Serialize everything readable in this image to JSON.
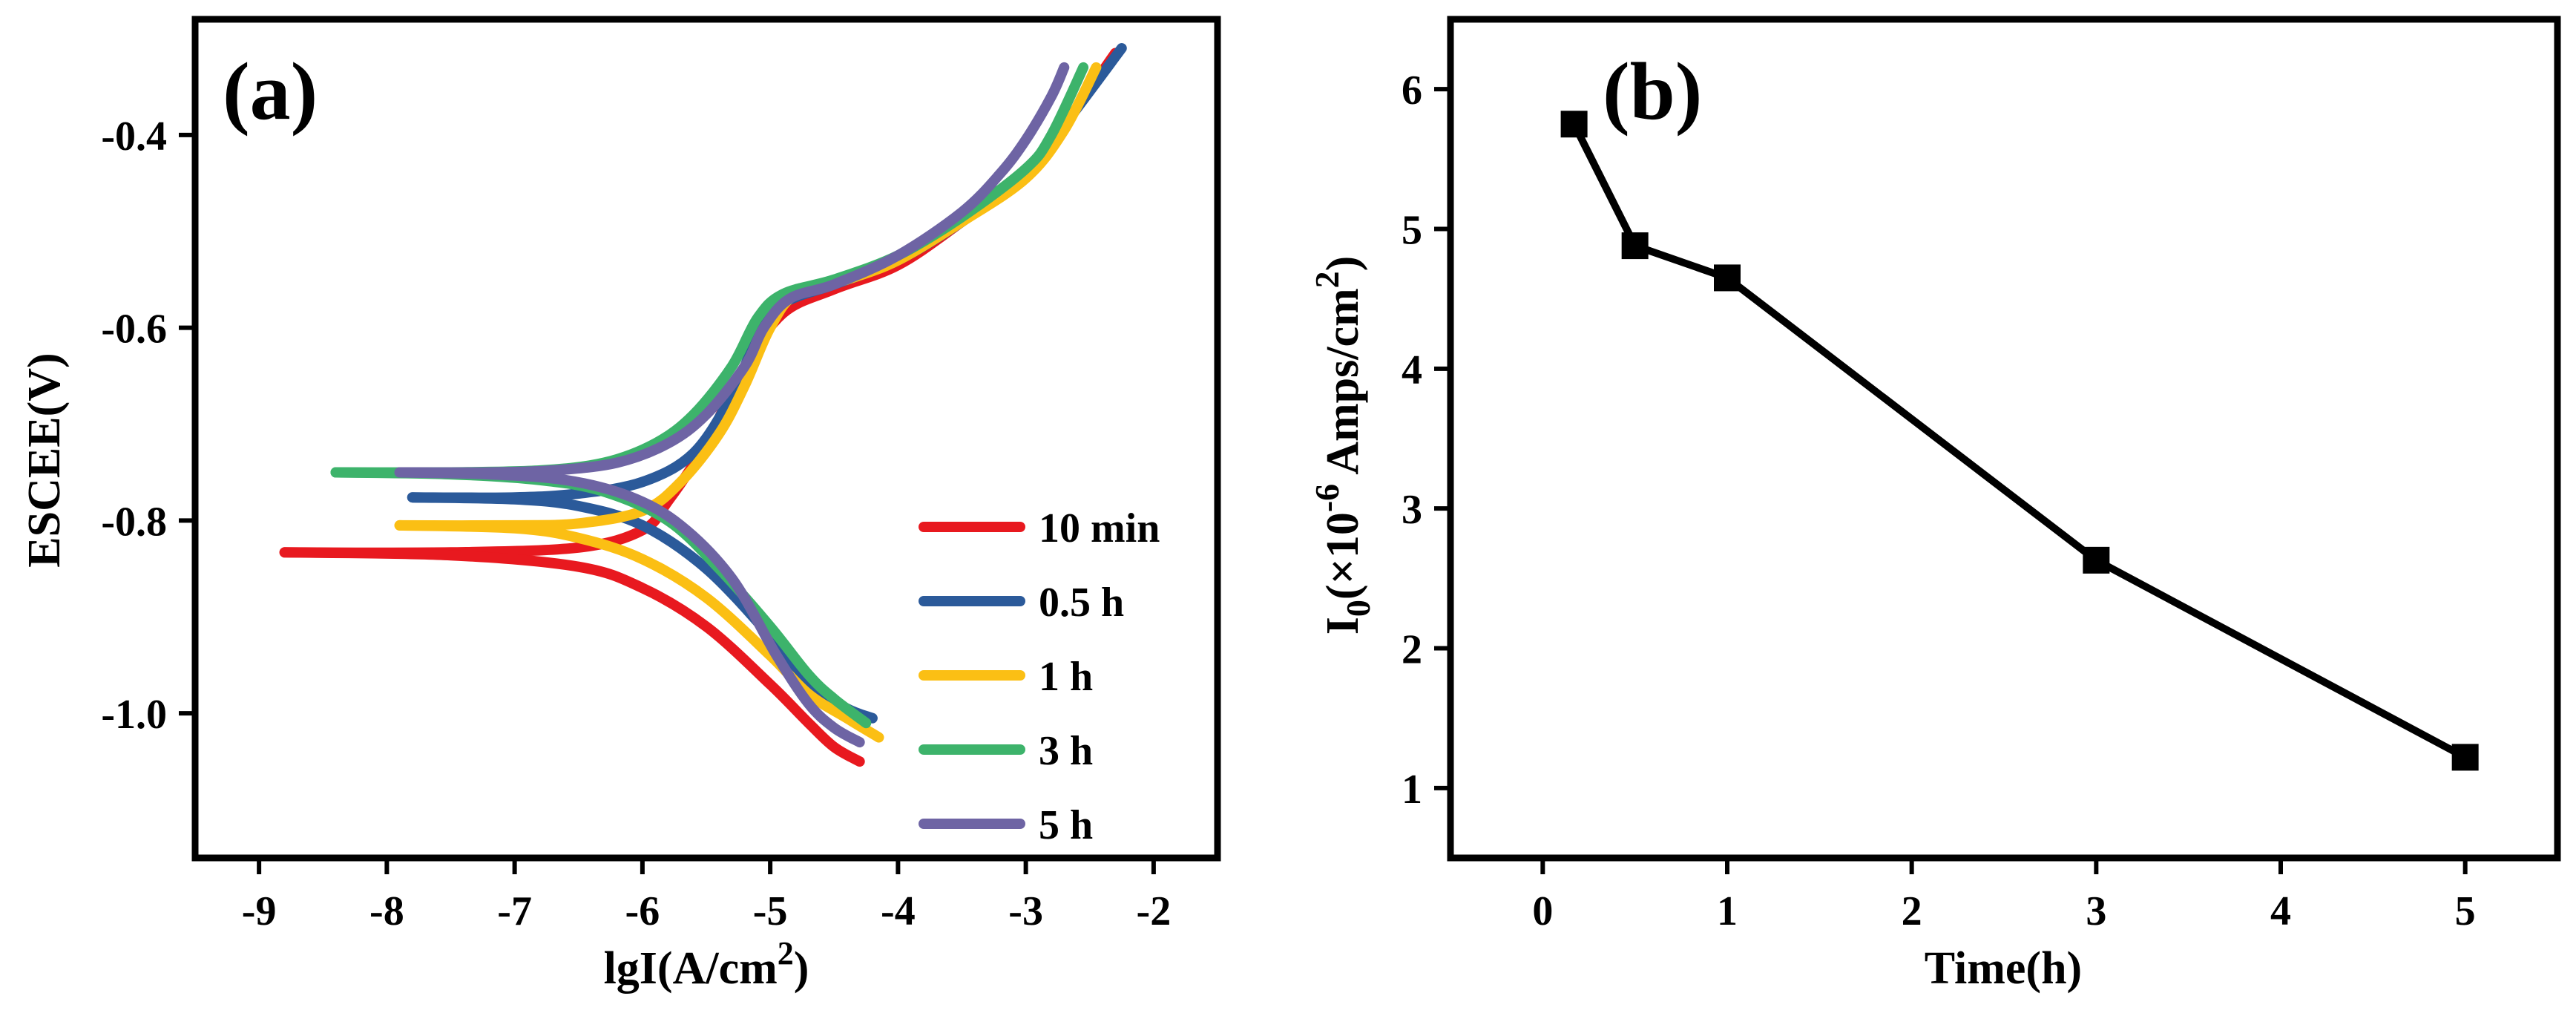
{
  "chart_data": [
    {
      "type": "line",
      "panel_label": "(a)",
      "xlabel_main": "lgI(A/cm",
      "xlabel_sup": "2",
      "xlabel_tail": ")",
      "ylabel": "ESCEE(V)",
      "xlim": [
        -9.5,
        -1.5
      ],
      "ylim": [
        -1.15,
        -0.28
      ],
      "xticks": [
        -9,
        -8,
        -7,
        -6,
        -5,
        -4,
        -3,
        -2
      ],
      "yticks": [
        -0.4,
        -0.6,
        -0.8,
        -1.0
      ],
      "ytick_labels": [
        "-0.4",
        "-0.6",
        "-0.8",
        "-1.0"
      ],
      "legend_position": "bottom-right",
      "series": [
        {
          "name": "10 min",
          "color": "#e8191f",
          "ecorr": -0.833,
          "anodic": [
            [
              -8.8,
              -0.833
            ],
            [
              -7.5,
              -0.833
            ],
            [
              -6.5,
              -0.828
            ],
            [
              -6.0,
              -0.81
            ],
            [
              -5.8,
              -0.78
            ],
            [
              -5.5,
              -0.72
            ],
            [
              -5.2,
              -0.64
            ],
            [
              -4.9,
              -0.585
            ],
            [
              -4.5,
              -0.56
            ],
            [
              -4.0,
              -0.535
            ],
            [
              -3.5,
              -0.49
            ],
            [
              -3.0,
              -0.44
            ],
            [
              -2.7,
              -0.39
            ],
            [
              -2.3,
              -0.315
            ]
          ],
          "cathodic": [
            [
              -8.8,
              -0.833
            ],
            [
              -7.5,
              -0.836
            ],
            [
              -6.5,
              -0.848
            ],
            [
              -6.0,
              -0.87
            ],
            [
              -5.5,
              -0.91
            ],
            [
              -5.0,
              -0.97
            ],
            [
              -4.7,
              -1.01
            ],
            [
              -4.5,
              -1.035
            ],
            [
              -4.3,
              -1.05
            ]
          ]
        },
        {
          "name": "0.5 h",
          "color": "#2b5a9a",
          "ecorr": -0.776,
          "anodic": [
            [
              -7.8,
              -0.776
            ],
            [
              -7.0,
              -0.776
            ],
            [
              -6.5,
              -0.772
            ],
            [
              -6.0,
              -0.76
            ],
            [
              -5.6,
              -0.73
            ],
            [
              -5.3,
              -0.67
            ],
            [
              -5.1,
              -0.61
            ],
            [
              -4.9,
              -0.575
            ],
            [
              -4.5,
              -0.555
            ],
            [
              -4.0,
              -0.53
            ],
            [
              -3.5,
              -0.49
            ],
            [
              -3.0,
              -0.44
            ],
            [
              -2.7,
              -0.39
            ],
            [
              -2.25,
              -0.31
            ]
          ],
          "cathodic": [
            [
              -7.8,
              -0.776
            ],
            [
              -7.0,
              -0.778
            ],
            [
              -6.5,
              -0.785
            ],
            [
              -6.0,
              -0.805
            ],
            [
              -5.5,
              -0.85
            ],
            [
              -5.0,
              -0.92
            ],
            [
              -4.7,
              -0.97
            ],
            [
              -4.4,
              -0.995
            ],
            [
              -4.2,
              -1.005
            ]
          ]
        },
        {
          "name": "1 h",
          "color": "#fbbf14",
          "ecorr": -0.805,
          "anodic": [
            [
              -7.9,
              -0.805
            ],
            [
              -7.0,
              -0.805
            ],
            [
              -6.5,
              -0.803
            ],
            [
              -6.0,
              -0.79
            ],
            [
              -5.7,
              -0.76
            ],
            [
              -5.4,
              -0.71
            ],
            [
              -5.2,
              -0.66
            ],
            [
              -5.0,
              -0.6
            ],
            [
              -4.8,
              -0.565
            ],
            [
              -4.4,
              -0.55
            ],
            [
              -4.0,
              -0.53
            ],
            [
              -3.5,
              -0.49
            ],
            [
              -3.0,
              -0.445
            ],
            [
              -2.7,
              -0.395
            ],
            [
              -2.45,
              -0.33
            ]
          ],
          "cathodic": [
            [
              -7.9,
              -0.805
            ],
            [
              -7.0,
              -0.808
            ],
            [
              -6.5,
              -0.818
            ],
            [
              -6.0,
              -0.84
            ],
            [
              -5.5,
              -0.88
            ],
            [
              -5.0,
              -0.94
            ],
            [
              -4.7,
              -0.98
            ],
            [
              -4.4,
              -1.005
            ],
            [
              -4.15,
              -1.025
            ]
          ]
        },
        {
          "name": "3 h",
          "color": "#3db36b",
          "ecorr": -0.75,
          "anodic": [
            [
              -8.4,
              -0.75
            ],
            [
              -7.5,
              -0.75
            ],
            [
              -6.8,
              -0.748
            ],
            [
              -6.3,
              -0.74
            ],
            [
              -5.9,
              -0.72
            ],
            [
              -5.6,
              -0.69
            ],
            [
              -5.3,
              -0.64
            ],
            [
              -5.1,
              -0.59
            ],
            [
              -4.9,
              -0.565
            ],
            [
              -4.5,
              -0.55
            ],
            [
              -4.0,
              -0.525
            ],
            [
              -3.5,
              -0.485
            ],
            [
              -3.0,
              -0.435
            ],
            [
              -2.8,
              -0.4
            ],
            [
              -2.55,
              -0.33
            ]
          ],
          "cathodic": [
            [
              -8.4,
              -0.75
            ],
            [
              -7.5,
              -0.752
            ],
            [
              -6.8,
              -0.758
            ],
            [
              -6.3,
              -0.77
            ],
            [
              -5.8,
              -0.8
            ],
            [
              -5.4,
              -0.85
            ],
            [
              -5.0,
              -0.91
            ],
            [
              -4.7,
              -0.96
            ],
            [
              -4.5,
              -0.985
            ],
            [
              -4.25,
              -1.01
            ]
          ]
        },
        {
          "name": "5 h",
          "color": "#6e64a4",
          "ecorr": -0.75,
          "anodic": [
            [
              -7.9,
              -0.75
            ],
            [
              -7.2,
              -0.75
            ],
            [
              -6.7,
              -0.748
            ],
            [
              -6.2,
              -0.74
            ],
            [
              -5.8,
              -0.72
            ],
            [
              -5.5,
              -0.69
            ],
            [
              -5.2,
              -0.64
            ],
            [
              -5.05,
              -0.6
            ],
            [
              -4.85,
              -0.57
            ],
            [
              -4.5,
              -0.555
            ],
            [
              -4.0,
              -0.525
            ],
            [
              -3.5,
              -0.48
            ],
            [
              -3.2,
              -0.44
            ],
            [
              -3.0,
              -0.405
            ],
            [
              -2.8,
              -0.36
            ],
            [
              -2.7,
              -0.33
            ]
          ],
          "cathodic": [
            [
              -7.9,
              -0.75
            ],
            [
              -7.2,
              -0.752
            ],
            [
              -6.6,
              -0.758
            ],
            [
              -6.1,
              -0.775
            ],
            [
              -5.7,
              -0.805
            ],
            [
              -5.3,
              -0.86
            ],
            [
              -4.95,
              -0.94
            ],
            [
              -4.7,
              -0.99
            ],
            [
              -4.5,
              -1.015
            ],
            [
              -4.3,
              -1.03
            ]
          ]
        }
      ]
    },
    {
      "type": "line",
      "panel_label": "(b)",
      "xlabel": "Time(h)",
      "ylabel_pre": "I",
      "ylabel_sub": "0",
      "ylabel_mid": "(×10",
      "ylabel_sup": "-6",
      "ylabel_tail": " Amps/cm",
      "ylabel_sup2": "2",
      "ylabel_end": ")",
      "xlim": [
        -0.5,
        5.5
      ],
      "ylim": [
        0.5,
        6.5
      ],
      "xticks": [
        0,
        1,
        2,
        3,
        4,
        5
      ],
      "yticks": [
        1,
        2,
        3,
        4,
        5,
        6
      ],
      "marker": "square",
      "color": "#000000",
      "x": [
        0.17,
        0.5,
        1,
        3,
        5
      ],
      "y": [
        5.75,
        4.88,
        4.65,
        2.63,
        1.22
      ]
    }
  ]
}
